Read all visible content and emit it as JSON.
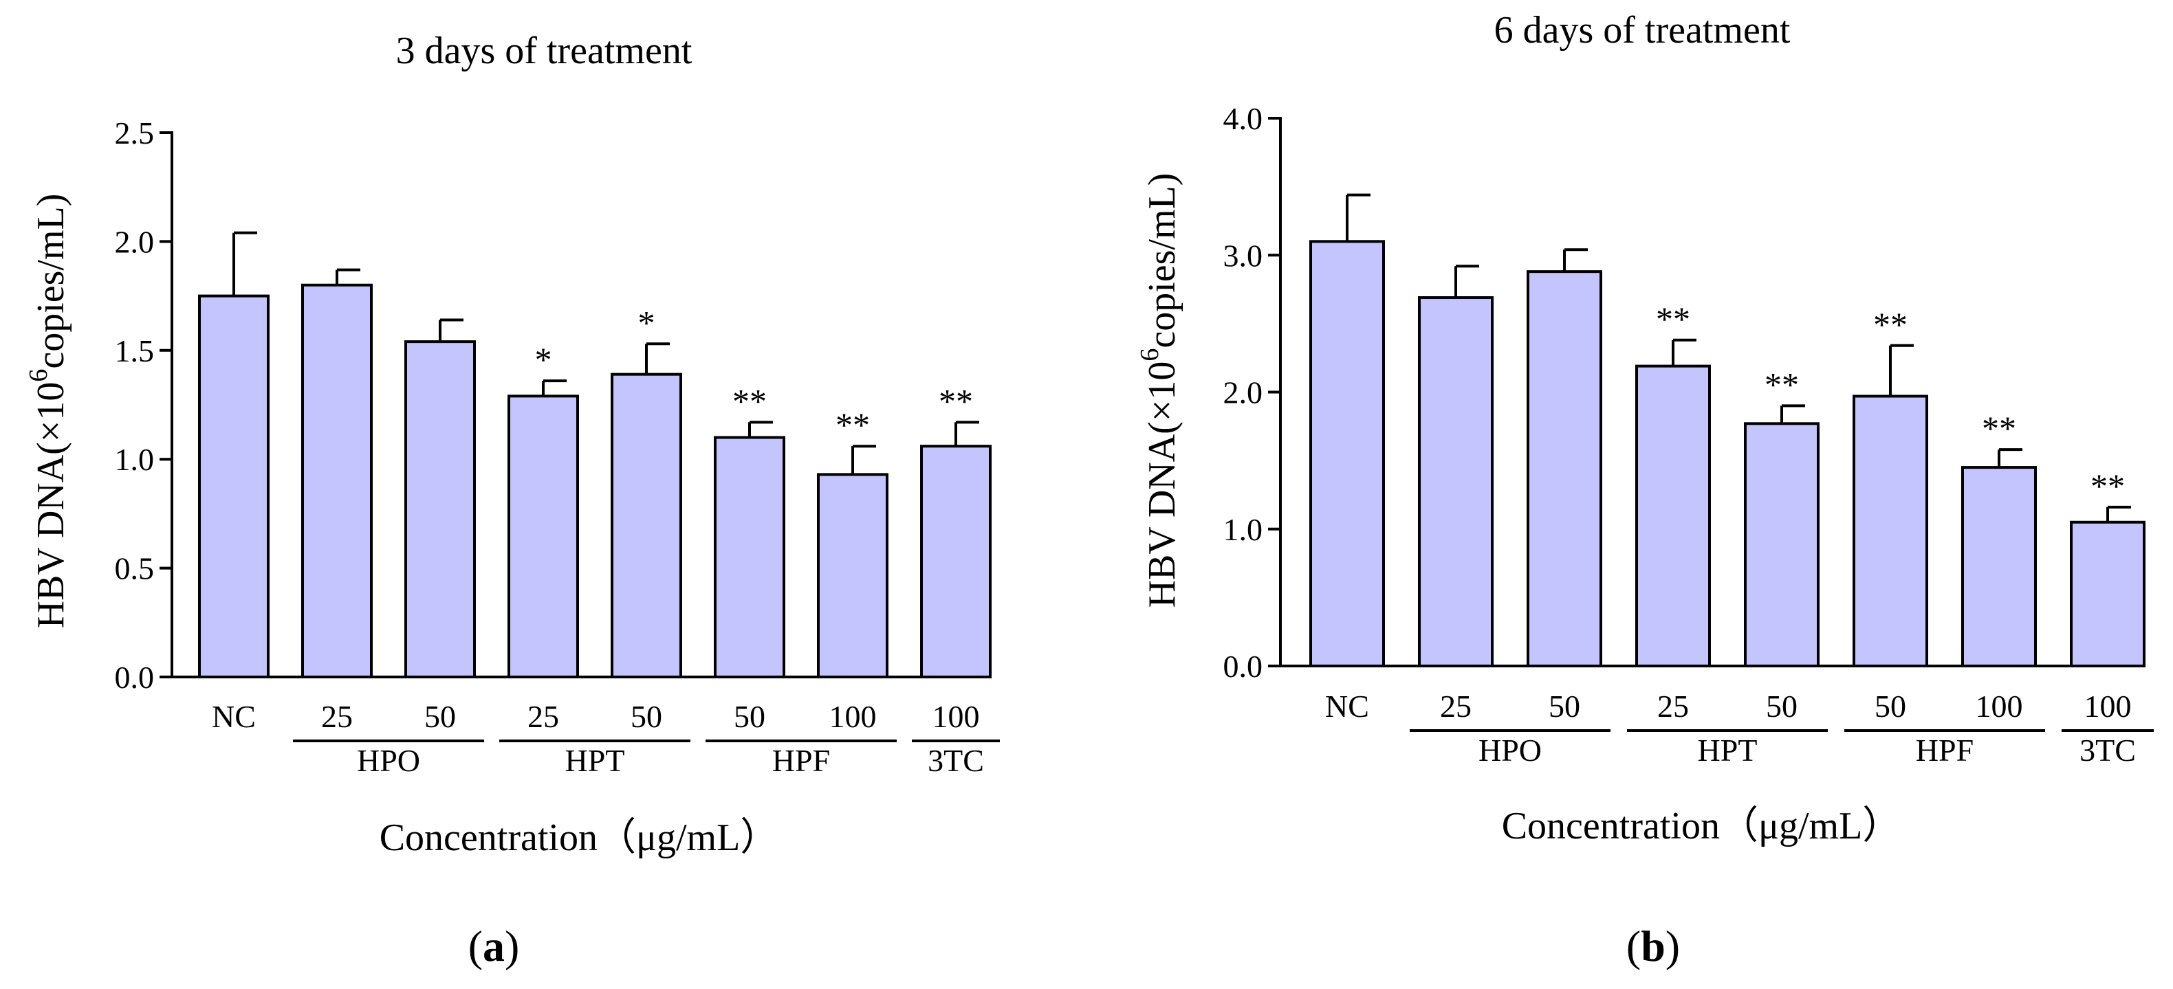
{
  "chart_data": [
    {
      "type": "bar",
      "title": "3 days of treatment",
      "ylabel_prefix": "HBV DNA(×10",
      "ylabel_sup": "6",
      "ylabel_suffix": "copies/mL)",
      "xlabel": "Concentration（μg/mL）",
      "panel_prefix": "(",
      "panel_letter": "a",
      "panel_suffix": ")",
      "ylim": [
        0,
        2.5
      ],
      "yticks": [
        "0.0",
        "0.5",
        "1.0",
        "1.5",
        "2.0",
        "2.5"
      ],
      "categories": [
        "NC",
        "25",
        "50",
        "25",
        "50",
        "50",
        "100",
        "100"
      ],
      "values": [
        1.75,
        1.8,
        1.54,
        1.29,
        1.39,
        1.1,
        0.93,
        1.06
      ],
      "errors": [
        0.29,
        0.07,
        0.1,
        0.07,
        0.14,
        0.07,
        0.13,
        0.11
      ],
      "significance": [
        "",
        "",
        "",
        "*",
        "*",
        "**",
        "**",
        "**"
      ],
      "groups": [
        {
          "label": "HPO",
          "start": 1,
          "end": 2
        },
        {
          "label": "HPT",
          "start": 3,
          "end": 4
        },
        {
          "label": "HPF",
          "start": 5,
          "end": 6
        },
        {
          "label": "3TC",
          "start": 7,
          "end": 7
        }
      ]
    },
    {
      "type": "bar",
      "title": "6 days of treatment",
      "ylabel_prefix": "HBV DNA(×10",
      "ylabel_sup": "6",
      "ylabel_suffix": "copies/mL)",
      "xlabel": "Concentration（μg/mL）",
      "panel_prefix": "(",
      "panel_letter": "b",
      "panel_suffix": ")",
      "ylim": [
        0,
        4.0
      ],
      "yticks": [
        "0.0",
        "1.0",
        "2.0",
        "3.0",
        "4.0"
      ],
      "categories": [
        "NC",
        "25",
        "50",
        "25",
        "50",
        "50",
        "100",
        "100"
      ],
      "values": [
        3.1,
        2.69,
        2.88,
        2.19,
        1.77,
        1.97,
        1.45,
        1.05
      ],
      "errors": [
        0.34,
        0.23,
        0.16,
        0.19,
        0.13,
        0.37,
        0.13,
        0.11
      ],
      "significance": [
        "",
        "",
        "",
        "**",
        "**",
        "**",
        "**",
        "**"
      ],
      "groups": [
        {
          "label": "HPO",
          "start": 1,
          "end": 2
        },
        {
          "label": "HPT",
          "start": 3,
          "end": 4
        },
        {
          "label": "HPF",
          "start": 5,
          "end": 6
        },
        {
          "label": "3TC",
          "start": 7,
          "end": 7
        }
      ]
    }
  ]
}
